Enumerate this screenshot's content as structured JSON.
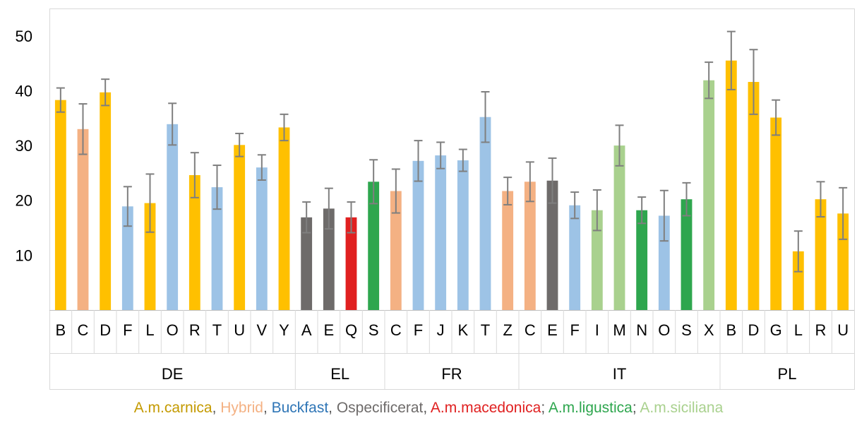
{
  "chart_data": {
    "type": "bar",
    "yticks": [
      10,
      20,
      30,
      40,
      50
    ],
    "ylim": [
      0,
      55
    ],
    "grid": false,
    "colors": {
      "carnica": "#FFC000",
      "hybrid": "#F4B183",
      "buckfast": "#9DC3E6",
      "unspecified": "#6E6B6A",
      "macedonica": "#E02020",
      "ligustica": "#2EA64E",
      "siciliana": "#A9D18E"
    },
    "groups": [
      {
        "name": "DE",
        "bars": [
          {
            "label": "B",
            "value": 38.3,
            "err": 2.2,
            "type": "carnica"
          },
          {
            "label": "C",
            "value": 33.0,
            "err": 4.6,
            "type": "hybrid"
          },
          {
            "label": "D",
            "value": 39.7,
            "err": 2.4,
            "type": "carnica"
          },
          {
            "label": "F",
            "value": 18.9,
            "err": 3.6,
            "type": "buckfast"
          },
          {
            "label": "L",
            "value": 19.5,
            "err": 5.3,
            "type": "carnica"
          },
          {
            "label": "O",
            "value": 33.9,
            "err": 3.8,
            "type": "buckfast"
          },
          {
            "label": "R",
            "value": 24.6,
            "err": 4.1,
            "type": "carnica"
          },
          {
            "label": "T",
            "value": 22.4,
            "err": 4.0,
            "type": "buckfast"
          },
          {
            "label": "U",
            "value": 30.1,
            "err": 2.1,
            "type": "carnica"
          },
          {
            "label": "V",
            "value": 26.0,
            "err": 2.3,
            "type": "buckfast"
          },
          {
            "label": "Y",
            "value": 33.3,
            "err": 2.4,
            "type": "carnica"
          }
        ]
      },
      {
        "name": "EL",
        "bars": [
          {
            "label": "A",
            "value": 16.9,
            "err": 2.8,
            "type": "unspecified"
          },
          {
            "label": "E",
            "value": 18.5,
            "err": 3.7,
            "type": "unspecified"
          },
          {
            "label": "Q",
            "value": 16.9,
            "err": 2.8,
            "type": "macedonica"
          },
          {
            "label": "S",
            "value": 23.4,
            "err": 4.0,
            "type": "ligustica"
          }
        ]
      },
      {
        "name": "FR",
        "bars": [
          {
            "label": "C",
            "value": 21.7,
            "err": 4.0,
            "type": "hybrid"
          },
          {
            "label": "F",
            "value": 27.2,
            "err": 3.7,
            "type": "buckfast"
          },
          {
            "label": "J",
            "value": 28.2,
            "err": 2.4,
            "type": "buckfast"
          },
          {
            "label": "K",
            "value": 27.3,
            "err": 2.0,
            "type": "buckfast"
          },
          {
            "label": "T",
            "value": 35.2,
            "err": 4.6,
            "type": "buckfast"
          },
          {
            "label": "Z",
            "value": 21.7,
            "err": 2.5,
            "type": "hybrid"
          }
        ]
      },
      {
        "name": "IT",
        "bars": [
          {
            "label": "C",
            "value": 23.4,
            "err": 3.6,
            "type": "hybrid"
          },
          {
            "label": "E",
            "value": 23.6,
            "err": 4.1,
            "type": "unspecified"
          },
          {
            "label": "F",
            "value": 19.1,
            "err": 2.4,
            "type": "buckfast"
          },
          {
            "label": "I",
            "value": 18.2,
            "err": 3.7,
            "type": "siciliana"
          },
          {
            "label": "M",
            "value": 30.0,
            "err": 3.7,
            "type": "siciliana"
          },
          {
            "label": "N",
            "value": 18.2,
            "err": 2.4,
            "type": "ligustica"
          },
          {
            "label": "O",
            "value": 17.2,
            "err": 4.6,
            "type": "buckfast"
          },
          {
            "label": "S",
            "value": 20.2,
            "err": 3.0,
            "type": "ligustica"
          },
          {
            "label": "X",
            "value": 41.9,
            "err": 3.3,
            "type": "siciliana"
          }
        ]
      },
      {
        "name": "PL",
        "bars": [
          {
            "label": "B",
            "value": 45.5,
            "err": 5.3,
            "type": "carnica"
          },
          {
            "label": "D",
            "value": 41.6,
            "err": 5.9,
            "type": "carnica"
          },
          {
            "label": "G",
            "value": 35.1,
            "err": 3.2,
            "type": "carnica"
          },
          {
            "label": "L",
            "value": 10.7,
            "err": 3.7,
            "type": "carnica"
          },
          {
            "label": "R",
            "value": 20.2,
            "err": 3.2,
            "type": "carnica"
          },
          {
            "label": "U",
            "value": 17.6,
            "err": 4.7,
            "type": "carnica"
          }
        ]
      }
    ],
    "legend": [
      {
        "text": "A.m.carnica",
        "type": "carnica"
      },
      {
        "text": ", ",
        "type": "sep"
      },
      {
        "text": "Hybrid",
        "type": "hybrid"
      },
      {
        "text": ", ",
        "type": "sep"
      },
      {
        "text": "Buckfast",
        "type": "legend_blue"
      },
      {
        "text": ", ",
        "type": "sep"
      },
      {
        "text": "Ospecificerat",
        "type": "unspecified"
      },
      {
        "text": ", ",
        "type": "sep"
      },
      {
        "text": "A.m.macedonica",
        "type": "macedonica"
      },
      {
        "text": "; ",
        "type": "sep"
      },
      {
        "text": "A.m.ligustica",
        "type": "ligustica"
      },
      {
        "text": "; ",
        "type": "sep"
      },
      {
        "text": "A.m.siciliana",
        "type": "siciliana"
      }
    ],
    "legend_colors": {
      "carnica": "#C49A00",
      "hybrid": "#F4B183",
      "legend_blue": "#2E75B6",
      "unspecified": "#6E6B6A",
      "macedonica": "#E02020",
      "ligustica": "#2EA64E",
      "siciliana": "#A9D18E",
      "sep": "#555555"
    }
  }
}
